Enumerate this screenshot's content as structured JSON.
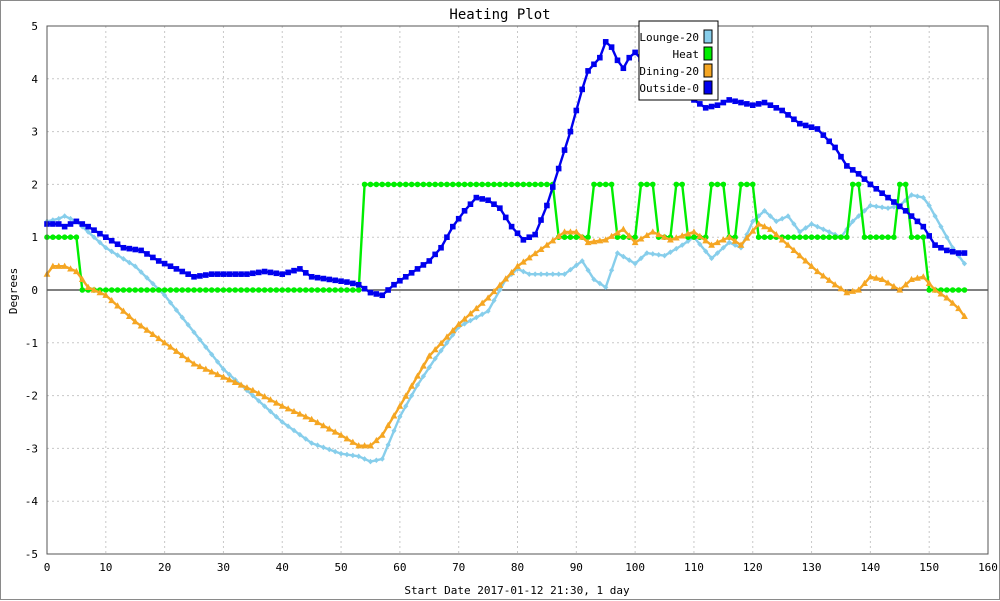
{
  "chart_data": {
    "type": "line",
    "title": "Heating Plot",
    "xlabel": "Start Date 2017-01-12 21:30, 1 day",
    "ylabel": "Degrees",
    "xlim": [
      0,
      160
    ],
    "ylim": [
      -5,
      5
    ],
    "x_ticks": [
      0,
      10,
      20,
      30,
      40,
      50,
      60,
      70,
      80,
      90,
      100,
      110,
      120,
      130,
      140,
      150,
      160
    ],
    "y_ticks": [
      -5,
      -4,
      -3,
      -2,
      -1,
      0,
      1,
      2,
      3,
      4,
      5
    ],
    "grid": true,
    "legend_position": "top-center",
    "series": [
      {
        "name": "Lounge-20",
        "color": "#87ceeb",
        "marker": "diamond",
        "points": [
          [
            0,
            1.3
          ],
          [
            2,
            1.35
          ],
          [
            3,
            1.4
          ],
          [
            5,
            1.3
          ],
          [
            7,
            1.1
          ],
          [
            10,
            0.8
          ],
          [
            15,
            0.45
          ],
          [
            20,
            -0.1
          ],
          [
            25,
            -0.8
          ],
          [
            30,
            -1.5
          ],
          [
            35,
            -2.0
          ],
          [
            40,
            -2.5
          ],
          [
            45,
            -2.9
          ],
          [
            50,
            -3.1
          ],
          [
            53,
            -3.15
          ],
          [
            55,
            -3.25
          ],
          [
            57,
            -3.2
          ],
          [
            60,
            -2.4
          ],
          [
            63,
            -1.8
          ],
          [
            66,
            -1.3
          ],
          [
            70,
            -0.7
          ],
          [
            75,
            -0.4
          ],
          [
            78,
            0.2
          ],
          [
            80,
            0.4
          ],
          [
            82,
            0.3
          ],
          [
            85,
            0.3
          ],
          [
            88,
            0.3
          ],
          [
            91,
            0.55
          ],
          [
            93,
            0.2
          ],
          [
            95,
            0.05
          ],
          [
            97,
            0.7
          ],
          [
            100,
            0.5
          ],
          [
            102,
            0.7
          ],
          [
            105,
            0.65
          ],
          [
            108,
            0.85
          ],
          [
            110,
            1.0
          ],
          [
            113,
            0.6
          ],
          [
            116,
            0.9
          ],
          [
            118,
            0.8
          ],
          [
            120,
            1.3
          ],
          [
            122,
            1.5
          ],
          [
            124,
            1.3
          ],
          [
            126,
            1.4
          ],
          [
            128,
            1.1
          ],
          [
            130,
            1.25
          ],
          [
            133,
            1.1
          ],
          [
            135,
            1.0
          ],
          [
            137,
            1.3
          ],
          [
            140,
            1.6
          ],
          [
            143,
            1.55
          ],
          [
            145,
            1.6
          ],
          [
            147,
            1.8
          ],
          [
            149,
            1.75
          ],
          [
            150,
            1.6
          ],
          [
            152,
            1.2
          ],
          [
            154,
            0.8
          ],
          [
            156,
            0.5
          ]
        ]
      },
      {
        "name": "Heat",
        "color": "#00ee00",
        "marker": "circle",
        "points": [
          [
            0,
            1
          ],
          [
            5,
            1
          ],
          [
            6,
            0
          ],
          [
            53,
            0
          ],
          [
            54,
            2
          ],
          [
            86,
            2
          ],
          [
            87,
            1
          ],
          [
            92,
            1
          ],
          [
            93,
            2
          ],
          [
            96,
            2
          ],
          [
            97,
            1
          ],
          [
            100,
            1
          ],
          [
            101,
            2
          ],
          [
            103,
            2
          ],
          [
            104,
            1
          ],
          [
            106,
            1
          ],
          [
            107,
            2
          ],
          [
            108,
            2
          ],
          [
            109,
            1
          ],
          [
            112,
            1
          ],
          [
            113,
            2
          ],
          [
            115,
            2
          ],
          [
            116,
            1
          ],
          [
            117,
            1
          ],
          [
            118,
            2
          ],
          [
            120,
            2
          ],
          [
            121,
            1
          ],
          [
            136,
            1
          ],
          [
            137,
            2
          ],
          [
            138,
            2
          ],
          [
            139,
            1
          ],
          [
            144,
            1
          ],
          [
            145,
            2
          ],
          [
            146,
            2
          ],
          [
            147,
            1
          ],
          [
            149,
            1
          ],
          [
            150,
            0
          ],
          [
            156,
            0
          ]
        ]
      },
      {
        "name": "Dining-20",
        "color": "#f5a623",
        "marker": "triangle",
        "points": [
          [
            0,
            0.3
          ],
          [
            1,
            0.45
          ],
          [
            3,
            0.45
          ],
          [
            5,
            0.35
          ],
          [
            7,
            0.05
          ],
          [
            10,
            -0.1
          ],
          [
            15,
            -0.6
          ],
          [
            20,
            -1.0
          ],
          [
            25,
            -1.4
          ],
          [
            30,
            -1.65
          ],
          [
            35,
            -1.9
          ],
          [
            40,
            -2.2
          ],
          [
            45,
            -2.45
          ],
          [
            50,
            -2.75
          ],
          [
            53,
            -2.95
          ],
          [
            55,
            -2.95
          ],
          [
            57,
            -2.75
          ],
          [
            60,
            -2.2
          ],
          [
            65,
            -1.25
          ],
          [
            70,
            -0.65
          ],
          [
            75,
            -0.15
          ],
          [
            80,
            0.45
          ],
          [
            85,
            0.85
          ],
          [
            88,
            1.1
          ],
          [
            90,
            1.1
          ],
          [
            92,
            0.9
          ],
          [
            95,
            0.95
          ],
          [
            98,
            1.15
          ],
          [
            100,
            0.9
          ],
          [
            103,
            1.1
          ],
          [
            106,
            0.95
          ],
          [
            110,
            1.1
          ],
          [
            113,
            0.85
          ],
          [
            116,
            1.0
          ],
          [
            118,
            0.85
          ],
          [
            121,
            1.25
          ],
          [
            123,
            1.15
          ],
          [
            125,
            0.95
          ],
          [
            128,
            0.65
          ],
          [
            131,
            0.35
          ],
          [
            134,
            0.1
          ],
          [
            136,
            -0.05
          ],
          [
            138,
            0.0
          ],
          [
            140,
            0.25
          ],
          [
            142,
            0.2
          ],
          [
            145,
            0.0
          ],
          [
            147,
            0.2
          ],
          [
            149,
            0.25
          ],
          [
            151,
            0.0
          ],
          [
            153,
            -0.15
          ],
          [
            155,
            -0.35
          ],
          [
            156,
            -0.5
          ]
        ]
      },
      {
        "name": "Outside-0",
        "color": "#0000ee",
        "marker": "square",
        "points": [
          [
            0,
            1.25
          ],
          [
            2,
            1.25
          ],
          [
            3,
            1.2
          ],
          [
            5,
            1.3
          ],
          [
            7,
            1.2
          ],
          [
            10,
            1.0
          ],
          [
            13,
            0.8
          ],
          [
            16,
            0.75
          ],
          [
            19,
            0.55
          ],
          [
            22,
            0.4
          ],
          [
            25,
            0.25
          ],
          [
            28,
            0.3
          ],
          [
            31,
            0.3
          ],
          [
            34,
            0.3
          ],
          [
            37,
            0.35
          ],
          [
            40,
            0.3
          ],
          [
            43,
            0.4
          ],
          [
            45,
            0.25
          ],
          [
            48,
            0.2
          ],
          [
            51,
            0.15
          ],
          [
            53,
            0.1
          ],
          [
            55,
            -0.05
          ],
          [
            57,
            -0.1
          ],
          [
            59,
            0.1
          ],
          [
            61,
            0.25
          ],
          [
            63,
            0.4
          ],
          [
            65,
            0.55
          ],
          [
            67,
            0.8
          ],
          [
            69,
            1.2
          ],
          [
            71,
            1.5
          ],
          [
            73,
            1.75
          ],
          [
            75,
            1.7
          ],
          [
            77,
            1.55
          ],
          [
            79,
            1.2
          ],
          [
            81,
            0.95
          ],
          [
            83,
            1.05
          ],
          [
            85,
            1.6
          ],
          [
            87,
            2.3
          ],
          [
            89,
            3.0
          ],
          [
            91,
            3.8
          ],
          [
            92,
            4.15
          ],
          [
            94,
            4.4
          ],
          [
            95,
            4.7
          ],
          [
            96,
            4.6
          ],
          [
            97,
            4.35
          ],
          [
            98,
            4.2
          ],
          [
            99,
            4.4
          ],
          [
            100,
            4.5
          ],
          [
            102,
            4.25
          ],
          [
            104,
            4.0
          ],
          [
            106,
            3.9
          ],
          [
            108,
            3.85
          ],
          [
            110,
            3.6
          ],
          [
            112,
            3.45
          ],
          [
            114,
            3.5
          ],
          [
            116,
            3.6
          ],
          [
            118,
            3.55
          ],
          [
            120,
            3.5
          ],
          [
            122,
            3.55
          ],
          [
            125,
            3.4
          ],
          [
            128,
            3.15
          ],
          [
            131,
            3.05
          ],
          [
            134,
            2.7
          ],
          [
            136,
            2.35
          ],
          [
            138,
            2.2
          ],
          [
            140,
            2.0
          ],
          [
            143,
            1.75
          ],
          [
            146,
            1.5
          ],
          [
            149,
            1.2
          ],
          [
            151,
            0.85
          ],
          [
            153,
            0.75
          ],
          [
            155,
            0.7
          ],
          [
            156,
            0.7
          ]
        ]
      }
    ]
  }
}
